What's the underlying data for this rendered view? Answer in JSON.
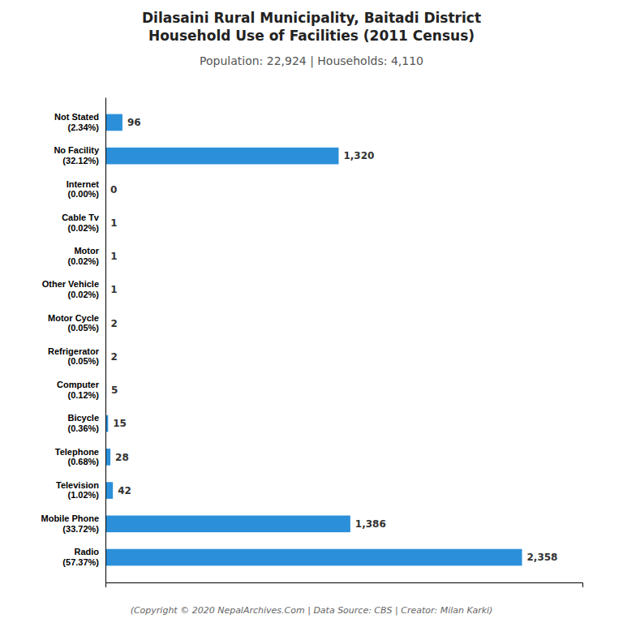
{
  "chart_data": {
    "type": "bar",
    "orientation": "horizontal",
    "title": "Dilasaini Rural Municipality, Baitadi District\nHousehold Use of Facilities (2011 Census)",
    "subtitle": "Population: 22,924 | Households: 4,110",
    "annotations": [
      "(Copyright © 2020 NepalArchives.Com | Data Source: CBS | Creator: Milan Karki)"
    ],
    "categories": [
      "Not Stated\n(2.34%)",
      "No Facility\n(32.12%)",
      "Internet\n(0.00%)",
      "Cable Tv\n(0.02%)",
      "Motor\n(0.02%)",
      "Other Vehicle\n(0.02%)",
      "Motor Cycle\n(0.05%)",
      "Refrigerator\n(0.05%)",
      "Computer\n(0.12%)",
      "Bicycle\n(0.36%)",
      "Telephone\n(0.68%)",
      "Television\n(1.02%)",
      "Mobile Phone\n(33.72%)",
      "Radio\n(57.37%)"
    ],
    "values": [
      96,
      1320,
      0,
      1,
      1,
      1,
      2,
      2,
      5,
      15,
      28,
      42,
      1386,
      2358
    ],
    "value_labels": [
      "96",
      "1,320",
      "0",
      "1",
      "1",
      "1",
      "2",
      "2",
      "5",
      "15",
      "28",
      "42",
      "1,386",
      "2,358"
    ],
    "data_labels": true,
    "color": "#2b90d9",
    "xlim": [
      0,
      2700
    ],
    "xticks": [],
    "tick_labels": "y",
    "grid": false
  }
}
